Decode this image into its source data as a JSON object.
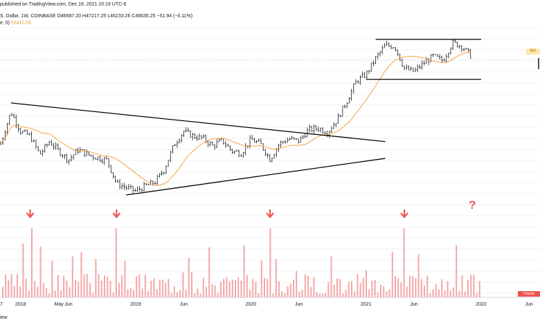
{
  "header": {
    "line1": "published on TradingView.com, Dec 19, 2021 20:19 UTC-6",
    "line2": "S. Dollar, 1W, COINBASE O46687.20 H47217.25 L46233.26 C46635.25 −51.94 (−0.11%)",
    "line3_prefix": "e, 0)",
    "line3_value": "53411.03"
  },
  "footer": {
    "note": "iew"
  },
  "badges": {
    "ma": "MA",
    "volume": "Volume"
  },
  "annotation": {
    "question": "?"
  },
  "colors": {
    "candle": "#131722",
    "ma_line": "#f2a33a",
    "volume_bar": "#f4a6a6",
    "arrow": "#ef5350",
    "trendline": "#000000"
  },
  "chart_data": {
    "type": "candlestick",
    "x_tick_labels": [
      "7",
      "Jun",
      "2018",
      "May",
      "2019",
      "Jun",
      "2020",
      "Jun",
      "2021",
      "Jun",
      "2022",
      "Jun"
    ],
    "x_ticks": [
      "2017-11",
      "2018-06",
      "2018-01",
      "2018-05",
      "2019-01",
      "2019-06",
      "2020-01",
      "2020-06",
      "2021-01",
      "2021-06",
      "2022-01",
      "2022-06"
    ],
    "price_series_close": [
      [
        "2017-09",
        4000
      ],
      [
        "2017-10",
        6000
      ],
      [
        "2017-11",
        9000
      ],
      [
        "2017-12",
        16000
      ],
      [
        "2018-01",
        11000
      ],
      [
        "2018-02",
        10000
      ],
      [
        "2018-03",
        7000
      ],
      [
        "2018-04",
        9000
      ],
      [
        "2018-05",
        7500
      ],
      [
        "2018-06",
        6300
      ],
      [
        "2018-07",
        7700
      ],
      [
        "2018-08",
        7000
      ],
      [
        "2018-09",
        6600
      ],
      [
        "2018-10",
        6300
      ],
      [
        "2018-11",
        4000
      ],
      [
        "2018-12",
        3700
      ],
      [
        "2019-01",
        3450
      ],
      [
        "2019-02",
        3800
      ],
      [
        "2019-03",
        4100
      ],
      [
        "2019-04",
        5300
      ],
      [
        "2019-05",
        8500
      ],
      [
        "2019-06",
        11000
      ],
      [
        "2019-07",
        10000
      ],
      [
        "2019-08",
        9600
      ],
      [
        "2019-09",
        8300
      ],
      [
        "2019-10",
        9200
      ],
      [
        "2019-11",
        7500
      ],
      [
        "2019-12",
        7200
      ],
      [
        "2020-01",
        9400
      ],
      [
        "2020-02",
        8600
      ],
      [
        "2020-03",
        6400
      ],
      [
        "2020-04",
        8700
      ],
      [
        "2020-05",
        9500
      ],
      [
        "2020-06",
        9100
      ],
      [
        "2020-07",
        11300
      ],
      [
        "2020-08",
        11700
      ],
      [
        "2020-09",
        10800
      ],
      [
        "2020-10",
        13800
      ],
      [
        "2020-11",
        19700
      ],
      [
        "2020-12",
        29000
      ],
      [
        "2021-01",
        33000
      ],
      [
        "2021-02",
        45000
      ],
      [
        "2021-03",
        58000
      ],
      [
        "2021-04",
        57000
      ],
      [
        "2021-05",
        37000
      ],
      [
        "2021-06",
        35000
      ],
      [
        "2021-07",
        41000
      ],
      [
        "2021-08",
        47000
      ],
      [
        "2021-09",
        43000
      ],
      [
        "2021-10",
        61000
      ],
      [
        "2021-11",
        57000
      ],
      [
        "2021-12",
        46635
      ]
    ],
    "volume_spikes": [
      "2018-02",
      "2018-11",
      "2020-03",
      "2021-05"
    ],
    "trendlines": [
      {
        "kind": "descending-resistance",
        "from": [
          "2017-12",
          19000
        ],
        "to": [
          "2021-03",
          9000
        ]
      },
      {
        "kind": "ascending-support",
        "from": [
          "2018-12",
          3200
        ],
        "to": [
          "2021-03",
          6500
        ]
      },
      {
        "kind": "range-top",
        "from": [
          "2021-02",
          65000
        ],
        "to": [
          "2022-01",
          65000
        ]
      },
      {
        "kind": "range-bottom",
        "from": [
          "2021-01",
          30000
        ],
        "to": [
          "2022-01",
          30000
        ]
      }
    ],
    "arrows_down_at": [
      "2018-02",
      "2018-11",
      "2020-03",
      "2021-05"
    ],
    "question_at": "2021-12",
    "ma_last": 53411.03
  }
}
